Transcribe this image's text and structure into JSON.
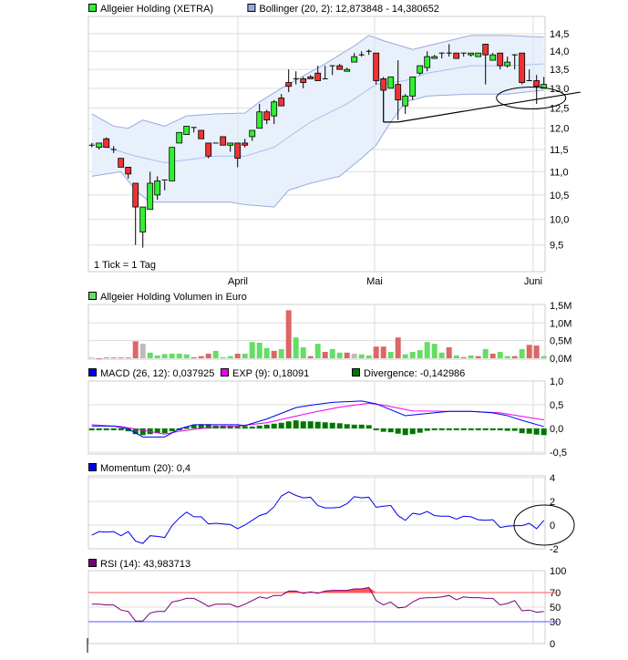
{
  "colors": {
    "up": "#33ee33",
    "down": "#ee3333",
    "neutral": "#bbbbbb",
    "band_fill": "#e8f0fb",
    "band_line": "#99aadd",
    "mid_line": "#aabff0",
    "macd": "#0000ee",
    "exp": "#ee00ee",
    "divergence": "#007700",
    "momentum": "#0000ee",
    "rsi": "#770077",
    "rsi_high": "#ff5555",
    "rsi_low": "#5555ff",
    "grid": "#dddddd",
    "vol_up": "#66dd66",
    "vol_down": "#dd6666",
    "vol_neutral": "#bbbbbb"
  },
  "months": [
    "April",
    "Mai",
    "Juni"
  ],
  "chart_data": [
    {
      "type": "candlestick",
      "legend": [
        {
          "label": "Allgeier Holding (XETRA)",
          "color": "#33ee33"
        },
        {
          "label": "Bollinger (20, 2): 12,873848 - 14,380652",
          "color": "#99aadd"
        }
      ],
      "note": "1 Tick = 1 Tag",
      "yscale": "log",
      "ylim": [
        9.0,
        15.0
      ],
      "yticks": [
        "14,5",
        "14,0",
        "13,5",
        "13,0",
        "12,5",
        "12,0",
        "11,5",
        "11,0",
        "10,5",
        "10,0",
        "9,5"
      ],
      "ytick_values": [
        14.5,
        14.0,
        13.5,
        13.0,
        12.5,
        12.0,
        11.5,
        11.0,
        10.5,
        10.0,
        9.5
      ],
      "month_start_day": [
        21,
        40,
        62
      ],
      "ohlc": [
        [
          11.6,
          11.65,
          11.55,
          11.6
        ],
        [
          11.55,
          11.65,
          11.5,
          11.65
        ],
        [
          11.75,
          11.78,
          11.55,
          11.55
        ],
        [
          11.5,
          11.58,
          11.42,
          11.5
        ],
        [
          11.3,
          11.3,
          11.1,
          11.1
        ],
        [
          11.1,
          11.1,
          10.85,
          10.95
        ],
        [
          10.75,
          10.75,
          9.5,
          10.25
        ],
        [
          9.75,
          10.25,
          9.45,
          10.25
        ],
        [
          10.2,
          11.0,
          10.2,
          10.75
        ],
        [
          10.5,
          10.9,
          10.4,
          10.8
        ],
        [
          10.8,
          10.8,
          10.6,
          10.82
        ],
        [
          10.8,
          11.55,
          10.8,
          11.55
        ],
        [
          11.65,
          11.9,
          11.65,
          11.9
        ],
        [
          11.85,
          12.05,
          11.85,
          12.05
        ],
        [
          12.02,
          12.02,
          11.9,
          12.0
        ],
        [
          11.95,
          11.95,
          11.75,
          11.75
        ],
        [
          11.65,
          11.65,
          11.3,
          11.35
        ],
        [
          11.65,
          11.65,
          11.65,
          11.65
        ],
        [
          11.8,
          11.8,
          11.6,
          11.6
        ],
        [
          11.6,
          11.65,
          11.45,
          11.65
        ],
        [
          11.65,
          11.65,
          11.1,
          11.3
        ],
        [
          11.65,
          11.75,
          11.55,
          11.6
        ],
        [
          11.8,
          11.95,
          11.7,
          11.95
        ],
        [
          12.0,
          12.6,
          12.0,
          12.4
        ],
        [
          12.4,
          12.45,
          12.1,
          12.2
        ],
        [
          12.3,
          12.7,
          12.1,
          12.65
        ],
        [
          12.75,
          12.85,
          12.55,
          12.55
        ],
        [
          13.15,
          13.5,
          12.9,
          13.05
        ],
        [
          13.25,
          13.45,
          13.1,
          13.25
        ],
        [
          13.25,
          13.3,
          13.0,
          13.15
        ],
        [
          13.3,
          13.35,
          13.25,
          13.25
        ],
        [
          13.4,
          13.6,
          13.2,
          13.2
        ],
        [
          13.25,
          13.6,
          13.25,
          13.25
        ],
        [
          13.6,
          13.6,
          13.35,
          13.6
        ],
        [
          13.6,
          13.65,
          13.5,
          13.5
        ],
        [
          13.45,
          13.55,
          13.45,
          13.5
        ],
        [
          13.7,
          13.95,
          13.7,
          13.85
        ],
        [
          13.9,
          14.0,
          13.85,
          13.9
        ],
        [
          14.0,
          14.05,
          13.9,
          14.0
        ],
        [
          13.95,
          13.95,
          13.1,
          13.2
        ],
        [
          13.25,
          13.3,
          12.15,
          12.95
        ],
        [
          13.0,
          13.3,
          13.0,
          13.3
        ],
        [
          13.1,
          13.75,
          12.2,
          12.7
        ],
        [
          12.55,
          12.85,
          12.35,
          12.8
        ],
        [
          12.8,
          13.3,
          12.7,
          13.3
        ],
        [
          13.4,
          13.6,
          13.35,
          13.6
        ],
        [
          13.55,
          14.0,
          13.45,
          13.85
        ],
        [
          13.8,
          13.9,
          13.8,
          13.85
        ],
        [
          13.95,
          13.95,
          13.8,
          13.95
        ],
        [
          13.95,
          14.2,
          13.85,
          13.95
        ],
        [
          13.95,
          13.95,
          13.8,
          13.8
        ],
        [
          13.95,
          13.95,
          13.85,
          13.95
        ],
        [
          13.9,
          13.95,
          13.85,
          13.95
        ],
        [
          13.85,
          13.95,
          13.85,
          13.95
        ],
        [
          14.2,
          14.2,
          13.1,
          13.9
        ],
        [
          13.75,
          13.95,
          13.75,
          13.9
        ],
        [
          13.95,
          13.95,
          13.5,
          13.6
        ],
        [
          13.6,
          13.85,
          13.55,
          13.7
        ],
        [
          13.9,
          13.92,
          13.5,
          13.9
        ],
        [
          13.95,
          13.95,
          13.1,
          13.15
        ],
        [
          13.2,
          13.5,
          13.2,
          13.2
        ],
        [
          13.2,
          13.35,
          12.6,
          13.05
        ],
        [
          13.0,
          13.3,
          13.0,
          13.1
        ]
      ],
      "bollinger_upper": [
        [
          1,
          12.35
        ],
        [
          4,
          12.05
        ],
        [
          6,
          12.0
        ],
        [
          8,
          12.2
        ],
        [
          11,
          12.05
        ],
        [
          14,
          12.3
        ],
        [
          18,
          12.35
        ],
        [
          22,
          12.37
        ],
        [
          24,
          12.65
        ],
        [
          27,
          13.0
        ],
        [
          33,
          13.65
        ],
        [
          37,
          14.15
        ],
        [
          39,
          14.45
        ],
        [
          41,
          14.3
        ],
        [
          45,
          14.05
        ],
        [
          48,
          14.2
        ],
        [
          53,
          14.45
        ],
        [
          58,
          14.45
        ],
        [
          63,
          14.4
        ]
      ],
      "bollinger_middle": [
        [
          1,
          11.65
        ],
        [
          7,
          11.35
        ],
        [
          11,
          11.2
        ],
        [
          18,
          11.35
        ],
        [
          22,
          11.35
        ],
        [
          26,
          11.55
        ],
        [
          31,
          12.15
        ],
        [
          36,
          12.6
        ],
        [
          40,
          13.1
        ],
        [
          44,
          13.2
        ],
        [
          47,
          13.4
        ],
        [
          53,
          13.6
        ],
        [
          58,
          13.6
        ],
        [
          63,
          13.65
        ]
      ],
      "bollinger_lower": [
        [
          1,
          10.9
        ],
        [
          5,
          11.0
        ],
        [
          7,
          10.6
        ],
        [
          9,
          10.35
        ],
        [
          20,
          10.35
        ],
        [
          22,
          10.3
        ],
        [
          26,
          10.25
        ],
        [
          28,
          10.6
        ],
        [
          31,
          10.75
        ],
        [
          35,
          10.9
        ],
        [
          38,
          11.3
        ],
        [
          40,
          11.6
        ],
        [
          42,
          12.15
        ],
        [
          44,
          12.65
        ],
        [
          47,
          12.8
        ],
        [
          53,
          12.85
        ],
        [
          58,
          12.85
        ],
        [
          63,
          12.95
        ]
      ],
      "trendline": [
        [
          41,
          12.15
        ],
        [
          43,
          12.15
        ],
        [
          68,
          12.9
        ]
      ],
      "annotation_ellipse_center": [
        62,
        12.75
      ]
    },
    {
      "type": "bar",
      "legend": [
        {
          "label": "Allgeier Holding Volumen in Euro",
          "color": "#66dd66"
        }
      ],
      "ylim": [
        0,
        1.5
      ],
      "yticks": [
        "1,5M",
        "1,0M",
        "0,5M",
        "0,0M"
      ],
      "ytick_values": [
        1.5,
        1.0,
        0.5,
        0.0
      ],
      "values_millions": [
        0.02,
        0,
        0.02,
        0.02,
        0.02,
        0.02,
        0.48,
        0.41,
        0.16,
        0.08,
        0.12,
        0.13,
        0.13,
        0.11,
        0.03,
        0.06,
        0.13,
        0.21,
        0.03,
        0.06,
        0.13,
        0.13,
        0.46,
        0.44,
        0.29,
        0.21,
        0.26,
        1.36,
        0.59,
        0.31,
        0.06,
        0.41,
        0.18,
        0.26,
        0.16,
        0.16,
        0.13,
        0.11,
        0.08,
        0.33,
        0.33,
        0.18,
        0.59,
        0.11,
        0.18,
        0.23,
        0.46,
        0.41,
        0.16,
        0.31,
        0.08,
        0.03,
        0.08,
        0.06,
        0.26,
        0.13,
        0.18,
        0.06,
        0.06,
        0.26,
        0.38,
        0.36,
        0.06
      ],
      "direction": "nrrrrrrnggggggrrrgggrggggrgrggrgrggrnggrrgrggggggrgrgrgrggrgrrg"
    },
    {
      "type": "line",
      "legend": [
        {
          "label": "MACD (26, 12): 0,037925",
          "color": "#0000ee"
        },
        {
          "label": "EXP (9): 0,18091",
          "color": "#ee00ee"
        },
        {
          "label": "Divergence: -0,142986",
          "color": "#007700"
        }
      ],
      "ylim": [
        -0.5,
        1.0
      ],
      "yticks": [
        "1,0",
        "0,5",
        "0,0",
        "-0,5"
      ],
      "ytick_values": [
        1.0,
        0.5,
        0.0,
        -0.5
      ],
      "macd": [
        [
          1,
          0.05
        ],
        [
          4,
          0.05
        ],
        [
          6,
          -0.01
        ],
        [
          8,
          -0.18
        ],
        [
          11,
          -0.18
        ],
        [
          13,
          -0.01
        ],
        [
          15,
          0.08
        ],
        [
          21,
          0.08
        ],
        [
          22,
          0.06
        ],
        [
          25,
          0.2
        ],
        [
          29,
          0.44
        ],
        [
          31,
          0.49
        ],
        [
          34,
          0.55
        ],
        [
          38,
          0.58
        ],
        [
          40,
          0.52
        ],
        [
          44,
          0.27
        ],
        [
          46,
          0.3
        ],
        [
          50,
          0.36
        ],
        [
          53,
          0.36
        ],
        [
          56,
          0.33
        ],
        [
          58,
          0.27
        ],
        [
          60,
          0.17
        ],
        [
          63,
          0.04
        ]
      ],
      "exp": [
        [
          1,
          0.08
        ],
        [
          5,
          0.04
        ],
        [
          11,
          -0.12
        ],
        [
          13,
          -0.06
        ],
        [
          17,
          0.02
        ],
        [
          21,
          0.05
        ],
        [
          25,
          0.12
        ],
        [
          31,
          0.33
        ],
        [
          35,
          0.45
        ],
        [
          39,
          0.53
        ],
        [
          41,
          0.49
        ],
        [
          45,
          0.37
        ],
        [
          50,
          0.36
        ],
        [
          53,
          0.36
        ],
        [
          57,
          0.33
        ],
        [
          63,
          0.18
        ]
      ],
      "divergence": [
        -0.04,
        -0.02,
        -0.02,
        -0.02,
        -0.04,
        -0.06,
        -0.12,
        -0.14,
        -0.12,
        -0.1,
        -0.1,
        -0.06,
        -0.02,
        0.03,
        0.07,
        0.09,
        0.09,
        0.06,
        0.06,
        0.06,
        0.06,
        0.05,
        0.04,
        0.06,
        0.08,
        0.1,
        0.12,
        0.15,
        0.17,
        0.15,
        0.15,
        0.14,
        0.13,
        0.12,
        0.11,
        0.09,
        0.08,
        0.08,
        0.07,
        0,
        -0.07,
        -0.08,
        -0.11,
        -0.14,
        -0.12,
        -0.09,
        -0.05,
        -0.02,
        -0.005,
        -0.005,
        -0.005,
        -0.005,
        -0.005,
        -0.005,
        -0.02,
        -0.02,
        -0.04,
        -0.05,
        -0.05,
        -0.1,
        -0.11,
        -0.13,
        -0.14
      ]
    },
    {
      "type": "line",
      "legend": [
        {
          "label": "Momentum (20): 0,4",
          "color": "#0000ee"
        }
      ],
      "ylim": [
        -2,
        4
      ],
      "yticks": [
        "4",
        "2",
        "0",
        "-2"
      ],
      "ytick_values": [
        4,
        2,
        0,
        -2
      ],
      "values": [
        -0.85,
        -0.55,
        -0.6,
        -0.55,
        -0.9,
        -0.55,
        -1.35,
        -1.55,
        -0.9,
        -0.95,
        -1.05,
        -0.05,
        0.6,
        1.1,
        0.7,
        0.7,
        0.1,
        0.15,
        0.1,
        0.05,
        -0.3,
        0,
        0.4,
        0.8,
        1.0,
        1.55,
        2.45,
        2.8,
        2.5,
        2.3,
        2.35,
        1.65,
        1.45,
        1.45,
        1.5,
        1.8,
        2.4,
        2.3,
        2.35,
        1.5,
        1.6,
        1.65,
        0.8,
        0.4,
        1.0,
        0.9,
        1.15,
        0.8,
        0.75,
        0.75,
        0.5,
        0.75,
        0.7,
        0.45,
        0.4,
        0.45,
        -0.2,
        -0.1,
        -0.05,
        -0.05,
        0.15,
        -0.3,
        0.4
      ],
      "annotation_ellipse_center": [
        63,
        0
      ]
    },
    {
      "type": "line",
      "legend": [
        {
          "label": "RSI (14): 43,983713",
          "color": "#770077"
        }
      ],
      "ylim": [
        0,
        100
      ],
      "yticks": [
        "100",
        "70",
        "50",
        "30",
        "0"
      ],
      "ytick_values": [
        100,
        70,
        50,
        30,
        0
      ],
      "ytick_colors": [
        "#000000",
        "#ff5555",
        "#000000",
        "#5555ff",
        "#000000"
      ],
      "values": [
        54,
        54,
        53,
        53,
        46,
        44,
        31,
        31,
        42,
        44,
        44,
        57,
        59,
        62,
        62,
        57,
        51,
        54,
        54,
        54,
        50,
        54,
        59,
        64,
        62,
        66,
        66,
        72,
        72,
        69,
        71,
        69,
        72,
        73,
        73,
        73,
        75,
        75,
        77,
        59,
        53,
        57,
        49,
        50,
        57,
        62,
        63,
        63,
        64,
        66,
        60,
        64,
        63,
        63,
        62,
        62,
        53,
        55,
        59,
        45,
        46,
        43,
        44
      ]
    }
  ]
}
